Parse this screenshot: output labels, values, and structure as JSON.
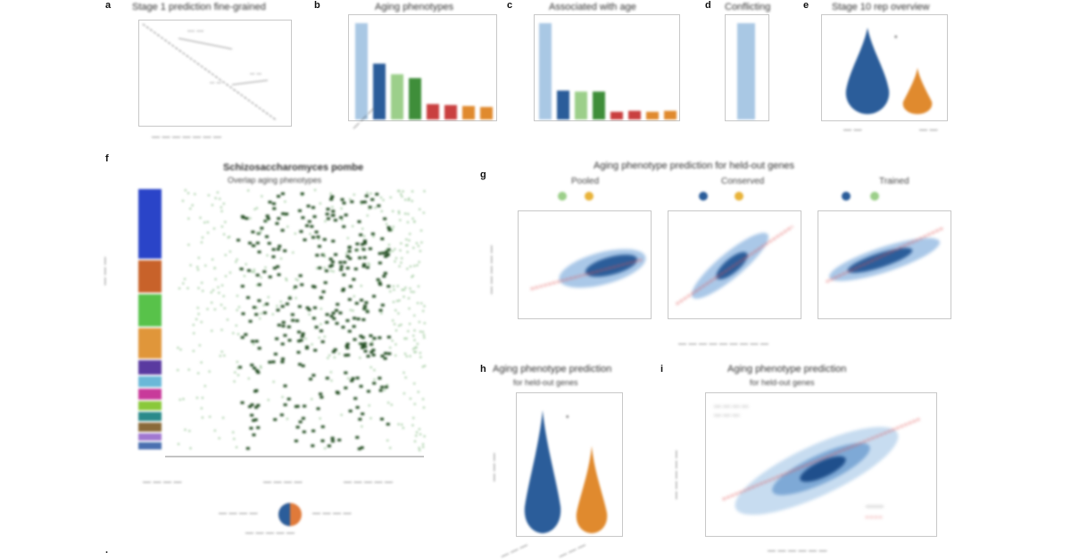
{
  "panels": {
    "a": {
      "letter": "a",
      "title": "Stage 1 prediction fine-grained"
    },
    "b": {
      "letter": "b",
      "title": "Aging phenotypes"
    },
    "c": {
      "letter": "c",
      "title": "Associated with age"
    },
    "d": {
      "letter": "d",
      "title": "Conflicting"
    },
    "e": {
      "letter": "e",
      "title": "Stage 10 rep overview"
    },
    "f": {
      "letter": "f",
      "title": "Schizosaccharomyces pombe",
      "subtitle": "Overlap aging phenotypes"
    },
    "g": {
      "letter": "g",
      "title": "Aging phenotype prediction for held-out genes",
      "subplots": [
        "Pooled",
        "Conserved",
        "Trained"
      ]
    },
    "h": {
      "letter": "h",
      "title": "Aging phenotype prediction",
      "subtitle": "for held-out genes"
    },
    "i": {
      "letter": "i",
      "title": "Aging phenotype prediction",
      "subtitle": "for held-out genes"
    }
  },
  "colors": {
    "blue": "#2b5d9a",
    "lightblue": "#a9c8e4",
    "green": "#3f8e3a",
    "lightgreen": "#9ccf8a",
    "red": "#c94040",
    "orange": "#e08a2e",
    "darkgreen": "#234d22"
  },
  "chart_data": [
    {
      "type": "bar",
      "panel": "b",
      "values": [
        100,
        58,
        47,
        43,
        16,
        15,
        14,
        13
      ]
    },
    {
      "type": "bar",
      "panel": "c",
      "values": [
        100,
        30,
        29,
        29,
        8,
        9,
        8,
        9
      ]
    },
    {
      "type": "bar",
      "panel": "d",
      "values": [
        100
      ]
    }
  ]
}
